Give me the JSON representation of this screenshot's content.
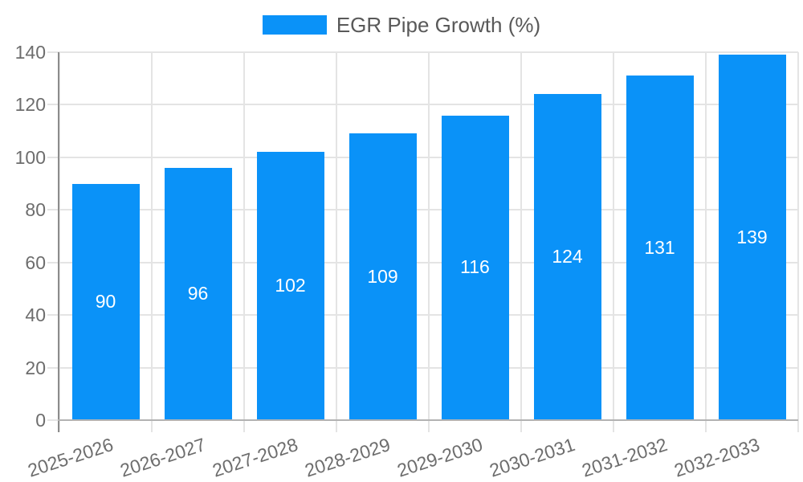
{
  "chart_data": {
    "type": "bar",
    "series_name": "EGR Pipe Growth (%)",
    "categories": [
      "2025-2026",
      "2026-2027",
      "2027-2028",
      "2028-2029",
      "2029-2030",
      "2030-2031",
      "2031-2032",
      "2032-2033"
    ],
    "values": [
      90,
      96,
      102,
      109,
      116,
      124,
      131,
      139
    ],
    "value_labels": [
      "90",
      "96",
      "102",
      "109",
      "116",
      "124",
      "131",
      "139"
    ],
    "ylim": [
      0,
      140
    ],
    "yticks": [
      0,
      20,
      40,
      60,
      80,
      100,
      120,
      140
    ],
    "legend_position": "top",
    "grid": true,
    "x_label_rotation_deg": -18,
    "colors": {
      "bar": "#0a92f8",
      "value_label": "#ffffff",
      "gridline": "#e4e4e4",
      "y_axis_line": "#8c8c8c",
      "x_axis_line": "#b3b3b3",
      "tick_text": "#6d6d6d",
      "legend_text": "#595959",
      "background": "#ffffff"
    }
  }
}
